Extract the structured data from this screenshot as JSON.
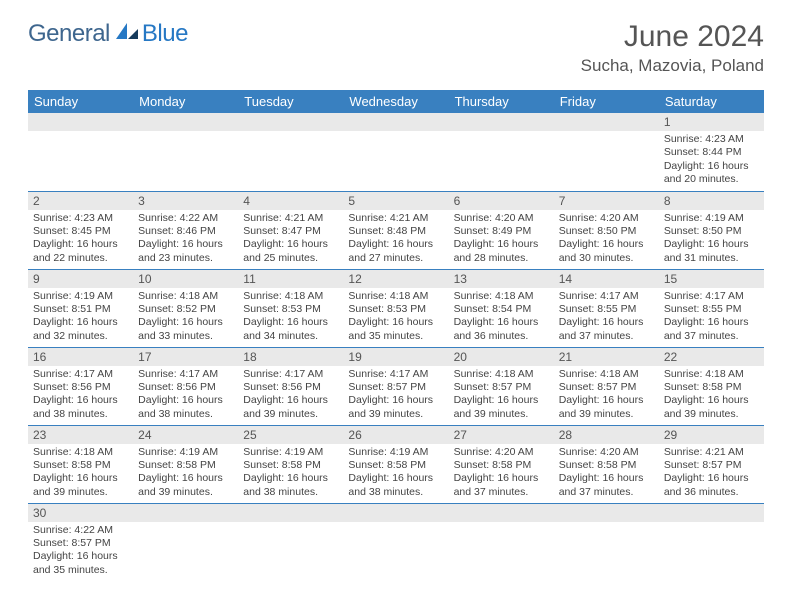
{
  "brand": {
    "general": "General",
    "blue": "Blue"
  },
  "title": "June 2024",
  "location": "Sucha, Mazovia, Poland",
  "colors": {
    "header_bg": "#3980c0",
    "header_text": "#ffffff",
    "daynum_bg": "#e9e9e9",
    "text": "#444444",
    "logo_general": "#3e668e",
    "logo_blue": "#2678c4"
  },
  "typography": {
    "title_fontsize": 30,
    "location_fontsize": 17,
    "dayheader_fontsize": 13,
    "daynum_fontsize": 12,
    "body_fontsize": 10.5
  },
  "day_headers": [
    "Sunday",
    "Monday",
    "Tuesday",
    "Wednesday",
    "Thursday",
    "Friday",
    "Saturday"
  ],
  "weeks": [
    [
      null,
      null,
      null,
      null,
      null,
      null,
      {
        "n": "1",
        "sr": "4:23 AM",
        "ss": "8:44 PM",
        "dl": "16 hours and 20 minutes."
      }
    ],
    [
      {
        "n": "2",
        "sr": "4:23 AM",
        "ss": "8:45 PM",
        "dl": "16 hours and 22 minutes."
      },
      {
        "n": "3",
        "sr": "4:22 AM",
        "ss": "8:46 PM",
        "dl": "16 hours and 23 minutes."
      },
      {
        "n": "4",
        "sr": "4:21 AM",
        "ss": "8:47 PM",
        "dl": "16 hours and 25 minutes."
      },
      {
        "n": "5",
        "sr": "4:21 AM",
        "ss": "8:48 PM",
        "dl": "16 hours and 27 minutes."
      },
      {
        "n": "6",
        "sr": "4:20 AM",
        "ss": "8:49 PM",
        "dl": "16 hours and 28 minutes."
      },
      {
        "n": "7",
        "sr": "4:20 AM",
        "ss": "8:50 PM",
        "dl": "16 hours and 30 minutes."
      },
      {
        "n": "8",
        "sr": "4:19 AM",
        "ss": "8:50 PM",
        "dl": "16 hours and 31 minutes."
      }
    ],
    [
      {
        "n": "9",
        "sr": "4:19 AM",
        "ss": "8:51 PM",
        "dl": "16 hours and 32 minutes."
      },
      {
        "n": "10",
        "sr": "4:18 AM",
        "ss": "8:52 PM",
        "dl": "16 hours and 33 minutes."
      },
      {
        "n": "11",
        "sr": "4:18 AM",
        "ss": "8:53 PM",
        "dl": "16 hours and 34 minutes."
      },
      {
        "n": "12",
        "sr": "4:18 AM",
        "ss": "8:53 PM",
        "dl": "16 hours and 35 minutes."
      },
      {
        "n": "13",
        "sr": "4:18 AM",
        "ss": "8:54 PM",
        "dl": "16 hours and 36 minutes."
      },
      {
        "n": "14",
        "sr": "4:17 AM",
        "ss": "8:55 PM",
        "dl": "16 hours and 37 minutes."
      },
      {
        "n": "15",
        "sr": "4:17 AM",
        "ss": "8:55 PM",
        "dl": "16 hours and 37 minutes."
      }
    ],
    [
      {
        "n": "16",
        "sr": "4:17 AM",
        "ss": "8:56 PM",
        "dl": "16 hours and 38 minutes."
      },
      {
        "n": "17",
        "sr": "4:17 AM",
        "ss": "8:56 PM",
        "dl": "16 hours and 38 minutes."
      },
      {
        "n": "18",
        "sr": "4:17 AM",
        "ss": "8:56 PM",
        "dl": "16 hours and 39 minutes."
      },
      {
        "n": "19",
        "sr": "4:17 AM",
        "ss": "8:57 PM",
        "dl": "16 hours and 39 minutes."
      },
      {
        "n": "20",
        "sr": "4:18 AM",
        "ss": "8:57 PM",
        "dl": "16 hours and 39 minutes."
      },
      {
        "n": "21",
        "sr": "4:18 AM",
        "ss": "8:57 PM",
        "dl": "16 hours and 39 minutes."
      },
      {
        "n": "22",
        "sr": "4:18 AM",
        "ss": "8:58 PM",
        "dl": "16 hours and 39 minutes."
      }
    ],
    [
      {
        "n": "23",
        "sr": "4:18 AM",
        "ss": "8:58 PM",
        "dl": "16 hours and 39 minutes."
      },
      {
        "n": "24",
        "sr": "4:19 AM",
        "ss": "8:58 PM",
        "dl": "16 hours and 39 minutes."
      },
      {
        "n": "25",
        "sr": "4:19 AM",
        "ss": "8:58 PM",
        "dl": "16 hours and 38 minutes."
      },
      {
        "n": "26",
        "sr": "4:19 AM",
        "ss": "8:58 PM",
        "dl": "16 hours and 38 minutes."
      },
      {
        "n": "27",
        "sr": "4:20 AM",
        "ss": "8:58 PM",
        "dl": "16 hours and 37 minutes."
      },
      {
        "n": "28",
        "sr": "4:20 AM",
        "ss": "8:58 PM",
        "dl": "16 hours and 37 minutes."
      },
      {
        "n": "29",
        "sr": "4:21 AM",
        "ss": "8:57 PM",
        "dl": "16 hours and 36 minutes."
      }
    ],
    [
      {
        "n": "30",
        "sr": "4:22 AM",
        "ss": "8:57 PM",
        "dl": "16 hours and 35 minutes."
      },
      null,
      null,
      null,
      null,
      null,
      null
    ]
  ],
  "labels": {
    "sunrise": "Sunrise: ",
    "sunset": "Sunset: ",
    "daylight": "Daylight: "
  }
}
